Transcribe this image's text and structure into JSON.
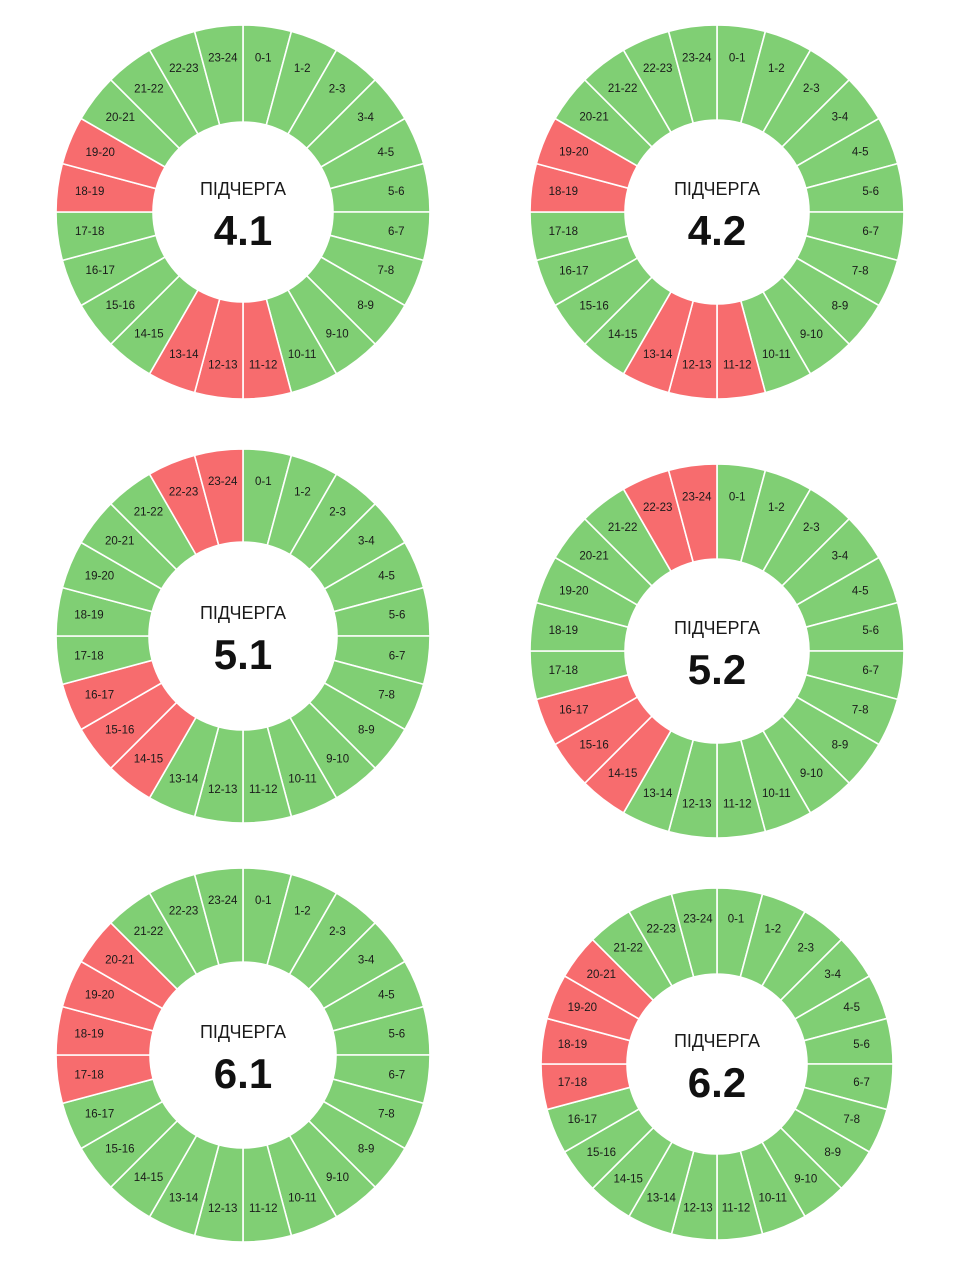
{
  "palette": {
    "on": "#80cf74",
    "off": "#f76c6e"
  },
  "hour_labels": [
    "0-1",
    "1-2",
    "2-3",
    "3-4",
    "4-5",
    "5-6",
    "6-7",
    "7-8",
    "8-9",
    "9-10",
    "10-11",
    "11-12",
    "12-13",
    "13-14",
    "14-15",
    "15-16",
    "16-17",
    "17-18",
    "18-19",
    "19-20",
    "20-21",
    "21-22",
    "22-23",
    "23-24"
  ],
  "chart_data": [
    {
      "type": "pie",
      "caption": "ПІДЧЕРГА",
      "number": "4.1",
      "off_hours": [
        11,
        12,
        13,
        18,
        19
      ]
    },
    {
      "type": "pie",
      "caption": "ПІДЧЕРГА",
      "number": "4.2",
      "off_hours": [
        11,
        12,
        13,
        18,
        19
      ]
    },
    {
      "type": "pie",
      "caption": "ПІДЧЕРГА",
      "number": "5.1",
      "off_hours": [
        14,
        15,
        16,
        22,
        23
      ]
    },
    {
      "type": "pie",
      "caption": "ПІДЧЕРГА",
      "number": "5.2",
      "off_hours": [
        14,
        15,
        16,
        22,
        23
      ]
    },
    {
      "type": "pie",
      "caption": "ПІДЧЕРГА",
      "number": "6.1",
      "off_hours": [
        17,
        18,
        19,
        20
      ]
    },
    {
      "type": "pie",
      "caption": "ПІДЧЕРГА",
      "number": "6.2",
      "off_hours": [
        17,
        18,
        19,
        20
      ]
    }
  ]
}
